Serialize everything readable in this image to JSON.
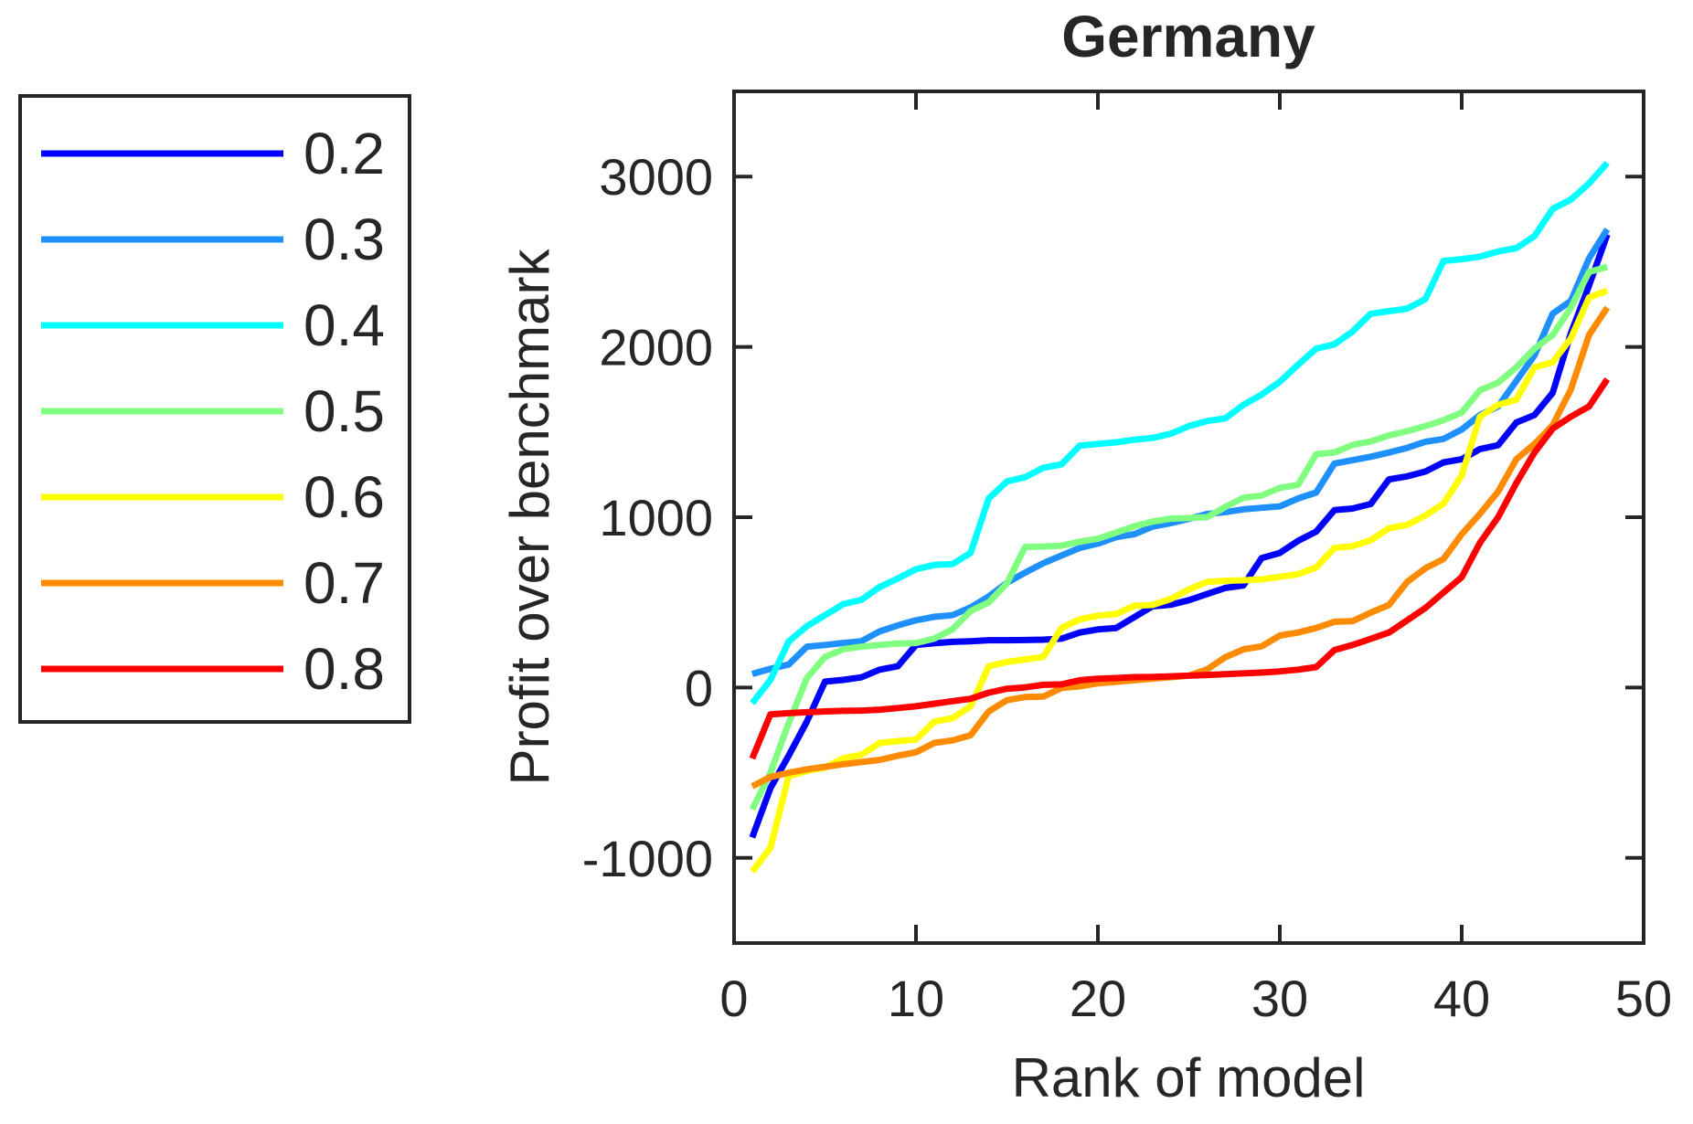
{
  "chart_data": {
    "type": "line",
    "title": "Germany",
    "xlabel": "Rank of model",
    "ylabel": "Profit over benchmark",
    "xlim": [
      0,
      50
    ],
    "ylim": [
      -1500,
      3500
    ],
    "xticks": [
      0,
      10,
      20,
      30,
      40,
      50
    ],
    "yticks": [
      -1000,
      0,
      1000,
      2000,
      3000
    ],
    "grid": false,
    "legend_position": "outside-upper-left",
    "axis_color": "#262626",
    "background_color": "#ffffff",
    "x_is_rank_starting_at_1": true,
    "series": [
      {
        "name": "0.2",
        "color": "#0000FF",
        "values": [
          -880,
          -590,
          -400,
          -200,
          35,
          45,
          60,
          105,
          125,
          250,
          260,
          268,
          272,
          278,
          278,
          279,
          281,
          287,
          323,
          341,
          350,
          413,
          477,
          486,
          513,
          549,
          585,
          600,
          760,
          790,
          861,
          915,
          1042,
          1051,
          1078,
          1222,
          1240,
          1268,
          1322,
          1340,
          1400,
          1423,
          1556,
          1600,
          1730,
          2080,
          2360,
          2660
        ]
      },
      {
        "name": "0.3",
        "color": "#1E90FF",
        "values": [
          80,
          110,
          135,
          240,
          250,
          262,
          272,
          330,
          365,
          395,
          415,
          425,
          470,
          535,
          615,
          675,
          730,
          775,
          820,
          845,
          883,
          900,
          945,
          965,
          990,
          1019,
          1030,
          1046,
          1055,
          1064,
          1110,
          1145,
          1315,
          1335,
          1355,
          1380,
          1407,
          1443,
          1460,
          1515,
          1600,
          1650,
          1800,
          1950,
          2195,
          2270,
          2520,
          2690
        ]
      },
      {
        "name": "0.4",
        "color": "#00FFFF",
        "values": [
          -92,
          45,
          270,
          360,
          425,
          490,
          515,
          590,
          640,
          695,
          720,
          725,
          790,
          1110,
          1210,
          1235,
          1290,
          1310,
          1420,
          1430,
          1440,
          1455,
          1465,
          1490,
          1535,
          1565,
          1580,
          1660,
          1720,
          1795,
          1895,
          1990,
          2015,
          2090,
          2195,
          2210,
          2225,
          2280,
          2505,
          2515,
          2530,
          2560,
          2580,
          2650,
          2810,
          2865,
          2960,
          3080
        ]
      },
      {
        "name": "0.5",
        "color": "#80FF80",
        "values": [
          -715,
          -500,
          -210,
          55,
          180,
          225,
          240,
          250,
          258,
          262,
          287,
          341,
          449,
          500,
          612,
          825,
          828,
          833,
          856,
          874,
          910,
          947,
          974,
          992,
          995,
          1000,
          1060,
          1115,
          1127,
          1172,
          1190,
          1370,
          1380,
          1425,
          1445,
          1480,
          1505,
          1535,
          1570,
          1615,
          1745,
          1790,
          1880,
          1990,
          2070,
          2230,
          2440,
          2470
        ]
      },
      {
        "name": "0.6",
        "color": "#FFFF00",
        "values": [
          -1080,
          -940,
          -520,
          -490,
          -470,
          -415,
          -395,
          -325,
          -315,
          -305,
          -200,
          -180,
          -110,
          125,
          150,
          165,
          180,
          350,
          400,
          422,
          432,
          480,
          485,
          520,
          576,
          620,
          627,
          630,
          635,
          650,
          665,
          705,
          820,
          830,
          865,
          935,
          955,
          1010,
          1080,
          1245,
          1590,
          1660,
          1690,
          1880,
          1910,
          2050,
          2290,
          2330
        ]
      },
      {
        "name": "0.7",
        "color": "#FF8C00",
        "values": [
          -580,
          -525,
          -500,
          -480,
          -465,
          -450,
          -437,
          -425,
          -400,
          -380,
          -325,
          -310,
          -280,
          -140,
          -74,
          -56,
          -53,
          -2,
          7,
          25,
          34,
          43,
          52,
          61,
          70,
          106,
          178,
          224,
          242,
          305,
          323,
          350,
          386,
          390,
          440,
          485,
          620,
          700,
          755,
          900,
          1020,
          1150,
          1340,
          1430,
          1540,
          1750,
          2070,
          2230
        ]
      },
      {
        "name": "0.8",
        "color": "#FF0000",
        "values": [
          -417,
          -157,
          -150,
          -145,
          -140,
          -137,
          -135,
          -130,
          -120,
          -110,
          -95,
          -80,
          -66,
          -30,
          -7,
          1,
          16,
          19,
          43,
          52,
          56,
          61,
          62,
          66,
          70,
          74,
          79,
          83,
          88,
          95,
          105,
          120,
          220,
          250,
          286,
          323,
          395,
          467,
          558,
          648,
          850,
          1000,
          1200,
          1380,
          1520,
          1590,
          1650,
          1810
        ]
      }
    ]
  }
}
